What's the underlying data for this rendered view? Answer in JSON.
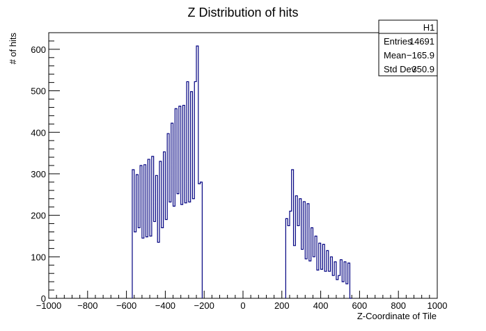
{
  "chart_data": {
    "type": "histogram",
    "title": "Z Distribution of hits",
    "xlabel": "Z-Coordinate of Tile",
    "ylabel": "# of hits",
    "xlim": [
      -1000,
      1000
    ],
    "ylim": [
      0,
      640
    ],
    "x_ticks": [
      -1000,
      -800,
      -600,
      -400,
      -200,
      0,
      200,
      400,
      600,
      800,
      1000
    ],
    "x_tick_labels": [
      "−1000",
      "−800",
      "−600",
      "−400",
      "−200",
      "0",
      "200",
      "400",
      "600",
      "800",
      "1000"
    ],
    "y_ticks": [
      0,
      100,
      200,
      300,
      400,
      500,
      600
    ],
    "y_tick_labels": [
      "0",
      "100",
      "200",
      "300",
      "400",
      "500",
      "600"
    ],
    "line_color": "#000080",
    "bins_left": [
      [
        -570,
        310
      ],
      [
        -560,
        160
      ],
      [
        -550,
        298
      ],
      [
        -540,
        170
      ],
      [
        -530,
        320
      ],
      [
        -520,
        145
      ],
      [
        -510,
        322
      ],
      [
        -500,
        148
      ],
      [
        -490,
        335
      ],
      [
        -480,
        150
      ],
      [
        -470,
        342
      ],
      [
        -460,
        185
      ],
      [
        -450,
        296
      ],
      [
        -440,
        135
      ],
      [
        -430,
        330
      ],
      [
        -420,
        170
      ],
      [
        -410,
        353
      ],
      [
        -400,
        190
      ],
      [
        -390,
        397
      ],
      [
        -380,
        232
      ],
      [
        -370,
        422
      ],
      [
        -360,
        222
      ],
      [
        -350,
        457
      ],
      [
        -340,
        252
      ],
      [
        -330,
        463
      ],
      [
        -320,
        226
      ],
      [
        -310,
        465
      ],
      [
        -300,
        230
      ],
      [
        -290,
        522
      ],
      [
        -280,
        232
      ],
      [
        -270,
        498
      ],
      [
        -260,
        240
      ],
      [
        -250,
        522
      ],
      [
        -240,
        608
      ],
      [
        -230,
        276
      ],
      [
        -220,
        280
      ]
    ],
    "bins_right": [
      [
        220,
        192
      ],
      [
        230,
        175
      ],
      [
        240,
        210
      ],
      [
        250,
        310
      ],
      [
        260,
        127
      ],
      [
        270,
        247
      ],
      [
        280,
        175
      ],
      [
        290,
        240
      ],
      [
        300,
        118
      ],
      [
        310,
        233
      ],
      [
        320,
        95
      ],
      [
        330,
        228
      ],
      [
        340,
        90
      ],
      [
        350,
        170
      ],
      [
        360,
        100
      ],
      [
        370,
        150
      ],
      [
        380,
        68
      ],
      [
        390,
        133
      ],
      [
        400,
        70
      ],
      [
        410,
        130
      ],
      [
        420,
        65
      ],
      [
        430,
        115
      ],
      [
        440,
        65
      ],
      [
        450,
        100
      ],
      [
        460,
        55
      ],
      [
        470,
        88
      ],
      [
        480,
        45
      ],
      [
        490,
        55
      ],
      [
        500,
        93
      ],
      [
        510,
        40
      ],
      [
        520,
        88
      ],
      [
        530,
        35
      ],
      [
        540,
        85
      ],
      [
        550,
        0
      ]
    ],
    "stats_box": {
      "name": "H1",
      "rows": [
        {
          "label": "Entries",
          "value": "14691"
        },
        {
          "label": "Mean",
          "value": "−165.9"
        },
        {
          "label": "Std Dev",
          "value": "350.9"
        }
      ]
    }
  }
}
